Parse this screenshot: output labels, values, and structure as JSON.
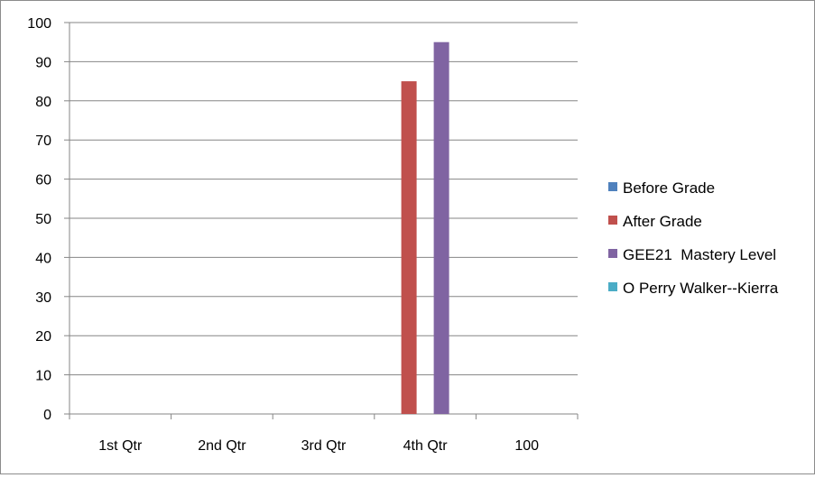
{
  "chart_data": {
    "type": "bar",
    "title": "",
    "xlabel": "",
    "ylabel": "",
    "ylim": [
      0,
      100
    ],
    "yticks": [
      0,
      10,
      20,
      30,
      40,
      50,
      60,
      70,
      80,
      90,
      100
    ],
    "grid": true,
    "legend_position": "right",
    "categories": [
      "1st Qtr",
      "2nd Qtr",
      "3rd Qtr",
      "4th Qtr",
      "100"
    ],
    "series": [
      {
        "name": "Before Grade",
        "color": "#4f81bd",
        "values": [
          null,
          null,
          null,
          null,
          null
        ]
      },
      {
        "name": "After Grade",
        "color": "#c0504d",
        "values": [
          null,
          null,
          null,
          85,
          null
        ]
      },
      {
        "name": "GEE21  Mastery Level",
        "color": "#8064a2",
        "values": [
          null,
          null,
          null,
          95,
          null
        ]
      },
      {
        "name": "O Perry Walker--Kierra",
        "color": "#4bacc6",
        "values": [
          null,
          null,
          null,
          null,
          null
        ]
      }
    ]
  }
}
